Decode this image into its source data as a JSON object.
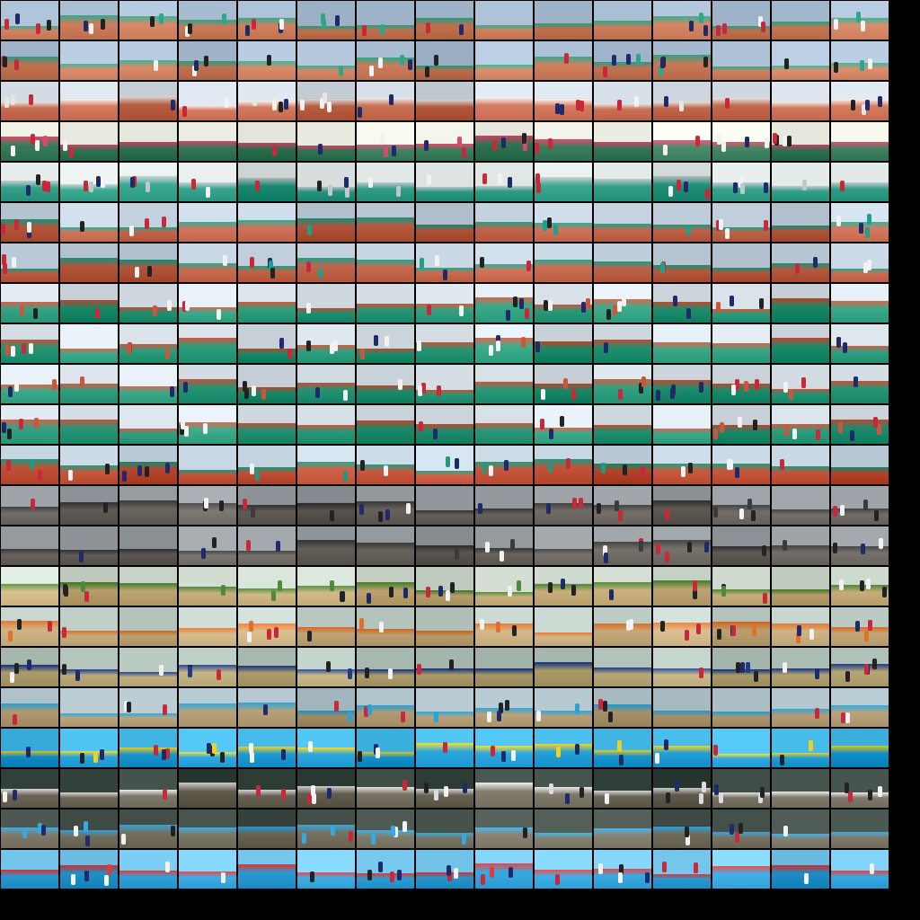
{
  "contact_sheet": {
    "columns": 15,
    "rows": 22,
    "background": "#000000",
    "rows_scenes": [
      "sports-track",
      "sports-track",
      "track-and-indoor",
      "classroom",
      "classroom-and-track",
      "track",
      "track",
      "track-field",
      "track-field",
      "track-field",
      "track-field",
      "track-and-ceremony",
      "beach-grey",
      "beach-grey",
      "beach-sand",
      "beach-campfire",
      "beach-and-hall",
      "beach-and-pool",
      "pool-canoe",
      "indoor-hall",
      "indoor-and-pool",
      "pool-waterpolo"
    ],
    "scene_palettes": {
      "sports-track": {
        "sky": "#9fb3c8",
        "ground": "#c97b5a",
        "accent": "#2fa58a"
      },
      "track": {
        "sky": "#b9c6d3",
        "ground": "#c2644a",
        "accent": "#20a08a"
      },
      "track-and-indoor": {
        "sky": "#c7d0d8",
        "ground": "#c46a4f",
        "accent": "#e6e6e6"
      },
      "classroom": {
        "sky": "#e8eadf",
        "ground": "#3a7d5c",
        "accent": "#d94b6a"
      },
      "classroom-and-track": {
        "sky": "#d7dedb",
        "ground": "#2f9c86",
        "accent": "#c0c8cc"
      },
      "track-field": {
        "sky": "#cfd8de",
        "ground": "#2b9a7a",
        "accent": "#c8573e"
      },
      "track-and-ceremony": {
        "sky": "#bfd0dc",
        "ground": "#c5553a",
        "accent": "#1f9a80"
      },
      "beach-grey": {
        "sky": "#8d9396",
        "ground": "#6b6660",
        "accent": "#3b3b3b"
      },
      "beach-sand": {
        "sky": "#c9d4c9",
        "ground": "#c9b07c",
        "accent": "#4f8a3c"
      },
      "beach-campfire": {
        "sky": "#b7c7c0",
        "ground": "#c8ae7e",
        "accent": "#e0702a"
      },
      "beach-and-hall": {
        "sky": "#a8b9b0",
        "ground": "#b8a878",
        "accent": "#1e3c8a"
      },
      "beach-and-pool": {
        "sky": "#a9bcc4",
        "ground": "#b39c74",
        "accent": "#2aa3d8"
      },
      "pool-canoe": {
        "sky": "#3cb0df",
        "ground": "#1e9bd3",
        "accent": "#f0d020"
      },
      "indoor-hall": {
        "sky": "#2c3b34",
        "ground": "#6f6a5c",
        "accent": "#dcdcdc"
      },
      "indoor-and-pool": {
        "sky": "#3d4a44",
        "ground": "#7b7565",
        "accent": "#38a9e0"
      },
      "pool-waterpolo": {
        "sky": "#6fc1e8",
        "ground": "#2e9fd6",
        "accent": "#e03a3a"
      }
    }
  }
}
